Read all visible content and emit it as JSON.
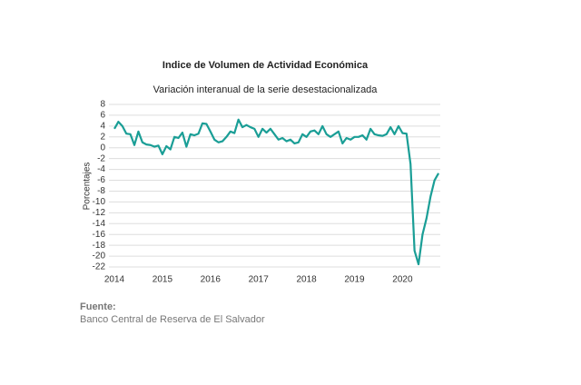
{
  "chart_data": {
    "type": "line",
    "title": "Indice de Volumen de  Actividad Económica",
    "subtitle": "Variación interanual de la serie desestacionalizada",
    "y_label": "Porcentajes",
    "source_title": "Fuente:",
    "source": "Banco Central de Reserva de El Salvador",
    "categories": [
      "2014",
      null,
      null,
      null,
      null,
      null,
      null,
      null,
      null,
      null,
      null,
      null,
      "2015",
      null,
      null,
      null,
      null,
      null,
      null,
      null,
      null,
      null,
      null,
      null,
      "2016",
      null,
      null,
      null,
      null,
      null,
      null,
      null,
      null,
      null,
      null,
      null,
      "2017",
      null,
      null,
      null,
      null,
      null,
      null,
      null,
      null,
      null,
      null,
      null,
      "2018",
      null,
      null,
      null,
      null,
      null,
      null,
      null,
      null,
      null,
      null,
      null,
      "2019",
      null,
      null,
      null,
      null,
      null,
      null,
      null,
      null,
      null,
      null,
      null,
      "2020",
      null,
      null,
      null,
      null,
      null,
      null,
      null,
      null,
      null
    ],
    "series": [
      {
        "name": "Indice de Volumen de Actividad Económica",
        "color": "#1a9e96",
        "values": [
          3.5,
          4.8,
          4.0,
          2.6,
          2.5,
          0.5,
          3.0,
          1.0,
          0.6,
          0.5,
          0.2,
          0.4,
          -1.2,
          0.3,
          -0.3,
          2.0,
          1.8,
          2.8,
          0.2,
          2.5,
          2.3,
          2.6,
          4.5,
          4.4,
          3.0,
          1.5,
          1.0,
          1.2,
          2.0,
          3.0,
          2.7,
          5.2,
          3.8,
          4.2,
          3.8,
          3.5,
          2.0,
          3.5,
          2.8,
          3.5,
          2.5,
          1.5,
          1.8,
          1.2,
          1.5,
          0.8,
          1.0,
          2.5,
          2.0,
          3.0,
          3.2,
          2.5,
          4.0,
          2.5,
          2.0,
          2.5,
          3.0,
          0.8,
          1.8,
          1.5,
          2.0,
          2.0,
          2.3,
          1.5,
          3.5,
          2.5,
          2.3,
          2.2,
          2.5,
          3.8,
          2.5,
          4.0,
          2.7,
          2.6,
          -3.0,
          -19.0,
          -21.5,
          -16.0,
          -13.0,
          -9.0,
          -6.0,
          -4.7
        ]
      }
    ],
    "ylim": [
      -22,
      8
    ],
    "yticks": [
      8,
      6,
      4,
      2,
      0,
      -2,
      -4,
      -6,
      -8,
      -10,
      -12,
      -14,
      -16,
      -18,
      -20,
      -22
    ],
    "grid": true
  }
}
